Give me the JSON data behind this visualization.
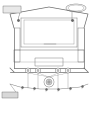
{
  "background_color": "#ffffff",
  "fig_width": 0.98,
  "fig_height": 1.2,
  "dpi": 100,
  "line_color": "#666666",
  "lw_main": 0.5,
  "lw_thin": 0.3,
  "lw_thick": 0.7
}
